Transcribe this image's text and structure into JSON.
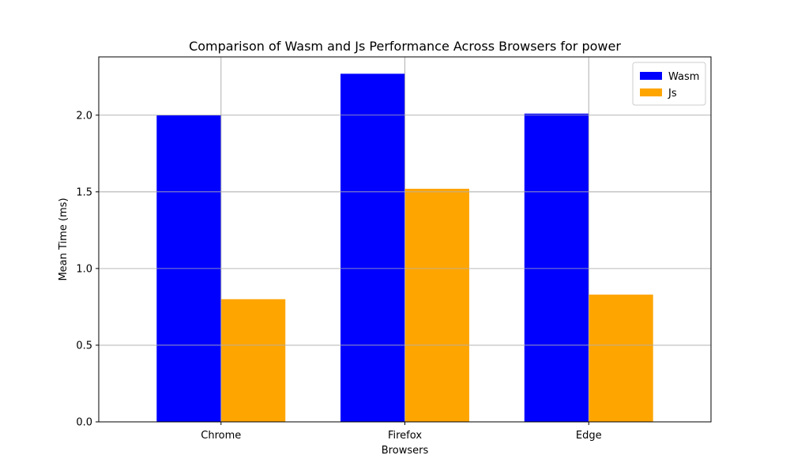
{
  "chart_data": {
    "type": "bar",
    "title": "Comparison of Wasm and Js Performance Across Browsers for power",
    "xlabel": "Browsers",
    "ylabel": "Mean Time (ms)",
    "categories": [
      "Chrome",
      "Firefox",
      "Edge"
    ],
    "series": [
      {
        "name": "Wasm",
        "color": "#0000ff",
        "values": [
          2.0,
          2.27,
          2.01
        ]
      },
      {
        "name": "Js",
        "color": "#ffa500",
        "values": [
          0.8,
          1.52,
          0.83
        ]
      }
    ],
    "ylim": [
      0,
      2.38
    ],
    "yticks": [
      0.0,
      0.5,
      1.0,
      1.5,
      2.0
    ],
    "ytick_labels": [
      "0.0",
      "0.5",
      "1.0",
      "1.5",
      "2.0"
    ],
    "grid": true,
    "legend_position": "top-right"
  }
}
